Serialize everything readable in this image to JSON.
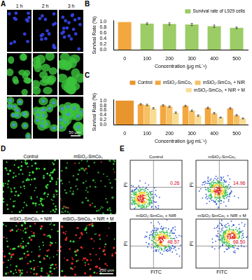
{
  "figure": {
    "panels": {
      "A": {
        "label": "A",
        "columns": [
          "1 h",
          "2 h",
          "3 h"
        ],
        "scale_bar": "50 μm"
      },
      "D": {
        "label": "D",
        "images": [
          "Control",
          "mSiO₂-SmCo₅",
          "mSiO₂-SmCo₅ + NIR",
          "mSiO₂-SmCo₅ + NIR + M"
        ],
        "scale_bar": "250 μm"
      },
      "E": {
        "label": "E",
        "x_label": "FITC",
        "y_label": "PI",
        "plots": [
          {
            "title": "Control",
            "percent": "0.26"
          },
          {
            "title": "mSiO₂-SmCo₅",
            "percent": "14.96"
          },
          {
            "title": "mSiO₂-SmCo₅ + NIR",
            "percent": "48.57"
          },
          {
            "title": "mSiO₂-SmCo₅ + NIR + M",
            "percent": "68.50"
          }
        ]
      }
    }
  },
  "chart_data": [
    {
      "panel": "B",
      "type": "bar",
      "x_label": "Concentration (μg mL⁻¹)",
      "y_label": "Survival Rate (%)",
      "categories": [
        "0",
        "100",
        "200",
        "300",
        "400",
        "500"
      ],
      "series": [
        {
          "name": "Survival rate of L929 cells",
          "color": "#9ccc65",
          "colors": [
            "#f3a73f",
            "#9ccc65",
            "#9ccc65",
            "#9ccc65",
            "#9ccc65",
            "#9ccc65"
          ],
          "values": [
            1.0,
            0.94,
            0.93,
            0.91,
            0.85,
            0.79
          ],
          "errors": [
            0,
            0.03,
            0.04,
            0.04,
            0.04,
            0.03
          ]
        }
      ],
      "ylim": [
        0,
        1.05
      ],
      "yticks": [
        {
          "value": 0,
          "label": "0.0"
        },
        0.2,
        0.4,
        0.6,
        0.8,
        {
          "value": 1,
          "label": "1.0"
        }
      ],
      "legend": "top right",
      "grid": false
    },
    {
      "panel": "C",
      "type": "bar",
      "x_label": "Concentration (μg mL⁻¹)",
      "y_label": "Survival Rate (%)",
      "categories": [
        "0",
        "100",
        "200",
        "300",
        "400",
        "500"
      ],
      "series": [
        {
          "name": "Control",
          "color": "#e8952e",
          "values": [
            1.0,
            null,
            null,
            null,
            null,
            null
          ],
          "errors": [
            0,
            null,
            null,
            null,
            null,
            null
          ]
        },
        {
          "name": "mSiO₂-SmCo₅",
          "color": "#f3a73f",
          "values": [
            null,
            0.85,
            0.8,
            0.78,
            0.7,
            0.68
          ],
          "errors": [
            null,
            0.03,
            0.03,
            0.03,
            0.03,
            0.03
          ]
        },
        {
          "name": "mSiO₂-SmCo₅ + NIR",
          "color": "#f6c063",
          "values": [
            null,
            0.82,
            0.75,
            0.58,
            0.48,
            0.39
          ],
          "errors": [
            null,
            0.03,
            0.03,
            0.03,
            0.03,
            0.03
          ]
        },
        {
          "name": "mSiO₂-SmCo₅ + NIR + M",
          "color": "#f9dc94",
          "values": [
            null,
            0.68,
            0.5,
            0.38,
            0.3,
            0.26
          ],
          "errors": [
            null,
            0.03,
            0.03,
            0.03,
            0.02,
            0.02
          ]
        }
      ],
      "ylim": [
        0,
        1.05
      ],
      "yticks": [
        {
          "value": 0,
          "label": "0.0"
        },
        0.2,
        0.4,
        0.6,
        0.8,
        {
          "value": 1,
          "label": "1.0"
        }
      ],
      "legend": "top right",
      "grid": false
    }
  ]
}
